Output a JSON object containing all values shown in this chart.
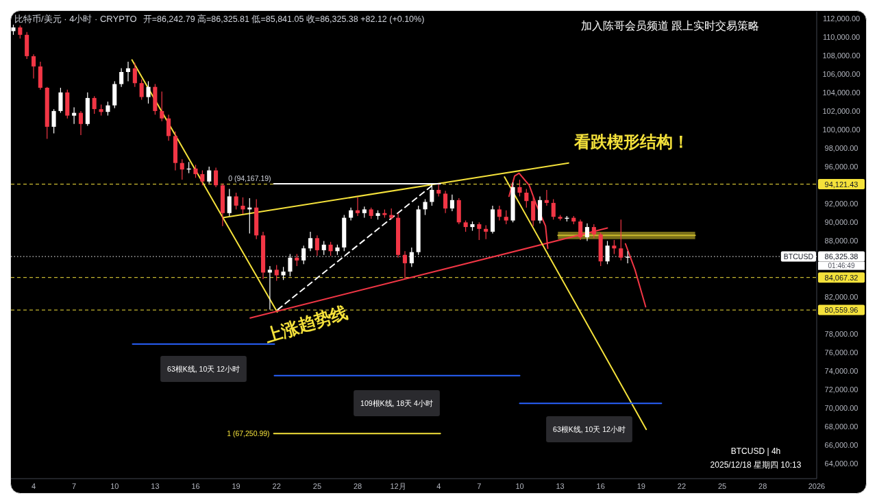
{
  "chart_data": {
    "type": "candlestick",
    "title": "比特币/美元 · 4小时 · CRYPTO",
    "subtitle": "开=86,242.79 高=86,325.81 低=85,841.05 收=86,325.38 +82.12 (+0.10%)",
    "x": [
      "2025-11-02T12:00",
      "2025-11-03T00:00",
      "2025-11-03T12:00",
      "2025-11-04T00:00",
      "2025-11-04T12:00",
      "2025-11-05T00:00",
      "2025-11-05T12:00",
      "2025-11-06T00:00",
      "2025-11-06T12:00",
      "2025-11-07T00:00",
      "2025-11-07T12:00",
      "2025-11-08T00:00",
      "2025-11-08T12:00",
      "2025-11-09T00:00",
      "2025-11-09T12:00",
      "2025-11-10T00:00",
      "2025-11-10T12:00",
      "2025-11-11T00:00",
      "2025-11-11T12:00",
      "2025-11-12T00:00",
      "2025-11-12T12:00",
      "2025-11-13T00:00",
      "2025-11-13T12:00",
      "2025-11-14T00:00",
      "2025-11-14T12:00",
      "2025-11-15T00:00",
      "2025-11-15T12:00",
      "2025-11-16T00:00",
      "2025-11-16T12:00",
      "2025-11-17T00:00",
      "2025-11-17T12:00",
      "2025-11-18T00:00",
      "2025-11-18T12:00",
      "2025-11-19T00:00",
      "2025-11-19T12:00",
      "2025-11-20T00:00",
      "2025-11-20T12:00",
      "2025-11-21T00:00",
      "2025-11-21T12:00",
      "2025-11-22T00:00",
      "2025-11-22T12:00",
      "2025-11-23T00:00",
      "2025-11-23T12:00",
      "2025-11-24T00:00",
      "2025-11-24T12:00",
      "2025-11-25T00:00",
      "2025-11-25T12:00",
      "2025-11-26T00:00",
      "2025-11-26T12:00",
      "2025-11-27T00:00",
      "2025-11-27T12:00",
      "2025-11-28T00:00",
      "2025-11-28T12:00",
      "2025-11-29T00:00",
      "2025-11-29T12:00",
      "2025-11-30T00:00",
      "2025-11-30T12:00",
      "2025-12-01T00:00",
      "2025-12-01T12:00",
      "2025-12-02T00:00",
      "2025-12-02T12:00",
      "2025-12-03T00:00",
      "2025-12-03T12:00",
      "2025-12-04T00:00",
      "2025-12-04T12:00",
      "2025-12-05T00:00",
      "2025-12-05T12:00",
      "2025-12-06T00:00",
      "2025-12-06T12:00",
      "2025-12-07T00:00",
      "2025-12-07T12:00",
      "2025-12-08T00:00",
      "2025-12-08T12:00",
      "2025-12-09T00:00",
      "2025-12-09T12:00",
      "2025-12-10T00:00",
      "2025-12-10T12:00",
      "2025-12-11T00:00",
      "2025-12-11T12:00",
      "2025-12-12T00:00",
      "2025-12-12T12:00",
      "2025-12-13T00:00",
      "2025-12-13T12:00",
      "2025-12-14T00:00",
      "2025-12-14T12:00",
      "2025-12-15T00:00",
      "2025-12-15T12:00",
      "2025-12-16T00:00",
      "2025-12-16T12:00",
      "2025-12-17T00:00",
      "2025-12-17T12:00",
      "2025-12-18T00:00"
    ],
    "ohlc": [
      [
        110600,
        111300,
        110200,
        111000
      ],
      [
        111000,
        111200,
        109800,
        110200
      ],
      [
        110200,
        110500,
        107600,
        107900
      ],
      [
        107900,
        108100,
        105500,
        106800
      ],
      [
        106800,
        107300,
        104300,
        104500
      ],
      [
        104500,
        104600,
        99000,
        100300
      ],
      [
        100300,
        102200,
        99600,
        102000
      ],
      [
        102000,
        104500,
        101800,
        104000
      ],
      [
        104000,
        104300,
        101200,
        101500
      ],
      [
        101500,
        102400,
        100600,
        101800
      ],
      [
        101800,
        102000,
        99400,
        100600
      ],
      [
        100600,
        104000,
        100400,
        103400
      ],
      [
        103400,
        103600,
        101700,
        102200
      ],
      [
        102200,
        102700,
        101500,
        101900
      ],
      [
        101900,
        103000,
        101500,
        102600
      ],
      [
        102600,
        105200,
        102300,
        104900
      ],
      [
        104900,
        106600,
        104600,
        106200
      ],
      [
        106200,
        107300,
        105200,
        106600
      ],
      [
        106600,
        107200,
        104600,
        105000
      ],
      [
        105000,
        105400,
        103200,
        103500
      ],
      [
        103500,
        105200,
        102800,
        104600
      ],
      [
        104600,
        104900,
        101600,
        102000
      ],
      [
        102000,
        104100,
        100900,
        101200
      ],
      [
        101200,
        101600,
        98800,
        99300
      ],
      [
        99300,
        99800,
        95600,
        96400
      ],
      [
        96400,
        96800,
        94600,
        95700
      ],
      [
        95700,
        96500,
        95300,
        95800
      ],
      [
        95800,
        96200,
        94800,
        95200
      ],
      [
        95200,
        95600,
        94000,
        94400
      ],
      [
        94400,
        96000,
        94200,
        95600
      ],
      [
        95600,
        95900,
        93800,
        94000
      ],
      [
        94000,
        94200,
        89600,
        91000
      ],
      [
        91000,
        93600,
        90700,
        92800
      ],
      [
        92800,
        93200,
        91400,
        91800
      ],
      [
        91800,
        92700,
        90900,
        91400
      ],
      [
        91400,
        92600,
        88800,
        91600
      ],
      [
        91600,
        92500,
        88200,
        88600
      ],
      [
        88600,
        89000,
        83900,
        84600
      ],
      [
        84600,
        85300,
        80600,
        84900
      ],
      [
        84900,
        85400,
        83700,
        84300
      ],
      [
        84300,
        85200,
        83800,
        84700
      ],
      [
        84700,
        86600,
        84200,
        86200
      ],
      [
        86200,
        86600,
        85300,
        85900
      ],
      [
        85900,
        87500,
        85500,
        87200
      ],
      [
        87200,
        89000,
        86900,
        88300
      ],
      [
        88300,
        88600,
        86400,
        87000
      ],
      [
        87000,
        88000,
        86500,
        87600
      ],
      [
        87600,
        87900,
        86400,
        86900
      ],
      [
        86900,
        87600,
        86500,
        87300
      ],
      [
        87300,
        90800,
        86900,
        90500
      ],
      [
        90500,
        91600,
        90200,
        91300
      ],
      [
        91300,
        92700,
        90700,
        91000
      ],
      [
        91000,
        91700,
        90500,
        91400
      ],
      [
        91400,
        91600,
        90400,
        90700
      ],
      [
        90700,
        91300,
        90300,
        91000
      ],
      [
        91000,
        91400,
        90500,
        90800
      ],
      [
        90800,
        91500,
        90300,
        90500
      ],
      [
        90500,
        91000,
        86200,
        86500
      ],
      [
        86500,
        86900,
        83900,
        85600
      ],
      [
        85600,
        87300,
        85200,
        86800
      ],
      [
        86800,
        91800,
        86500,
        91400
      ],
      [
        91400,
        92500,
        90800,
        92200
      ],
      [
        92200,
        94200,
        91800,
        93500
      ],
      [
        93500,
        94100,
        92800,
        93100
      ],
      [
        93100,
        93400,
        91000,
        91500
      ],
      [
        91500,
        93000,
        91200,
        92400
      ],
      [
        92400,
        92600,
        89800,
        90000
      ],
      [
        90000,
        90200,
        89000,
        89500
      ],
      [
        89500,
        90100,
        89100,
        89800
      ],
      [
        89800,
        90000,
        88100,
        89300
      ],
      [
        89300,
        89700,
        88200,
        89000
      ],
      [
        89000,
        91800,
        88800,
        91400
      ],
      [
        91400,
        91800,
        90200,
        90600
      ],
      [
        90600,
        91300,
        89800,
        90200
      ],
      [
        90200,
        94300,
        90000,
        93800
      ],
      [
        93800,
        94600,
        92800,
        93200
      ],
      [
        93200,
        93600,
        91600,
        92300
      ],
      [
        92300,
        92700,
        89600,
        90200
      ],
      [
        90200,
        92800,
        89900,
        92400
      ],
      [
        92400,
        93500,
        91800,
        92100
      ],
      [
        92100,
        92500,
        90300,
        90600
      ],
      [
        90600,
        90800,
        90200,
        90400
      ],
      [
        90400,
        90700,
        90100,
        90500
      ],
      [
        90500,
        90700,
        89800,
        90100
      ],
      [
        90100,
        90300,
        88100,
        88400
      ],
      [
        88400,
        89900,
        88000,
        89500
      ],
      [
        89500,
        89800,
        88300,
        88700
      ],
      [
        88700,
        88900,
        85300,
        85800
      ],
      [
        85800,
        88000,
        85500,
        87500
      ],
      [
        87500,
        88100,
        86600,
        87200
      ],
      [
        87200,
        90300,
        85900,
        86200
      ],
      [
        86200,
        86900,
        85600,
        86300
      ]
    ],
    "colors": [
      "#ffffff",
      "#f23645",
      "#f23645",
      "#f23645",
      "#f23645",
      "#f23645",
      "#ffffff",
      "#ffffff",
      "#f23645",
      "#ffffff",
      "#f23645",
      "#ffffff",
      "#f23645",
      "#f23645",
      "#ffffff",
      "#ffffff",
      "#ffffff",
      "#ffffff",
      "#f23645",
      "#f23645",
      "#ffffff",
      "#f23645",
      "#f23645",
      "#f23645",
      "#f23645",
      "#f23645",
      "#ffffff",
      "#f23645",
      "#f23645",
      "#ffffff",
      "#f23645",
      "#f23645",
      "#ffffff",
      "#f23645",
      "#f23645",
      "#ffffff",
      "#f23645",
      "#f23645",
      "#ffffff",
      "#f23645",
      "#ffffff",
      "#ffffff",
      "#f23645",
      "#ffffff",
      "#ffffff",
      "#f23645",
      "#ffffff",
      "#f23645",
      "#ffffff",
      "#ffffff",
      "#ffffff",
      "#f23645",
      "#ffffff",
      "#f23645",
      "#ffffff",
      "#f23645",
      "#f23645",
      "#f23645",
      "#f23645",
      "#ffffff",
      "#ffffff",
      "#ffffff",
      "#ffffff",
      "#f23645",
      "#f23645",
      "#ffffff",
      "#f23645",
      "#f23645",
      "#ffffff",
      "#f23645",
      "#f23645",
      "#ffffff",
      "#f23645",
      "#f23645",
      "#ffffff",
      "#f23645",
      "#f23645",
      "#f23645",
      "#ffffff",
      "#f23645",
      "#f23645",
      "#f23645",
      "#ffffff",
      "#f23645",
      "#f23645",
      "#ffffff",
      "#f23645",
      "#f23645",
      "#ffffff",
      "#f23645",
      "#f23645",
      "#ffffff"
    ],
    "xlim": [
      "2025-11-02T09:00",
      "2026-01-01T00:00"
    ],
    "xticks": [
      {
        "value": "2025-11-04",
        "label": "4"
      },
      {
        "value": "2025-11-07",
        "label": "7"
      },
      {
        "value": "2025-11-10",
        "label": "10"
      },
      {
        "value": "2025-11-13",
        "label": "13"
      },
      {
        "value": "2025-11-16",
        "label": "16"
      },
      {
        "value": "2025-11-19",
        "label": "19"
      },
      {
        "value": "2025-11-22",
        "label": "22"
      },
      {
        "value": "2025-11-25",
        "label": "25"
      },
      {
        "value": "2025-11-28",
        "label": "28"
      },
      {
        "value": "2025-12-01",
        "label": "12月"
      },
      {
        "value": "2025-12-04",
        "label": "4"
      },
      {
        "value": "2025-12-07",
        "label": "7"
      },
      {
        "value": "2025-12-10",
        "label": "10"
      },
      {
        "value": "2025-12-13",
        "label": "13"
      },
      {
        "value": "2025-12-16",
        "label": "16"
      },
      {
        "value": "2025-12-19",
        "label": "19"
      },
      {
        "value": "2025-12-22",
        "label": "22"
      },
      {
        "value": "2025-12-25",
        "label": "25"
      },
      {
        "value": "2025-12-28",
        "label": "28"
      },
      {
        "value": "2026-01-01",
        "label": "2026"
      }
    ],
    "ylim": [
      62400,
      112700
    ],
    "yticks": [
      {
        "value": 64000,
        "label": "64,000.00"
      },
      {
        "value": 66000,
        "label": "66,000.00"
      },
      {
        "value": 68000,
        "label": "68,000.00"
      },
      {
        "value": 70000,
        "label": "70,000.00"
      },
      {
        "value": 72000,
        "label": "72,000.00"
      },
      {
        "value": 74000,
        "label": "74,000.00"
      },
      {
        "value": 76000,
        "label": "76,000.00"
      },
      {
        "value": 78000,
        "label": "78,000.00"
      },
      {
        "value": 82000,
        "label": "82,000.00"
      },
      {
        "value": 88000,
        "label": "88,000.00"
      },
      {
        "value": 90000,
        "label": "90,000.00"
      },
      {
        "value": 92000,
        "label": "92,000.00"
      },
      {
        "value": 96000,
        "label": "96,000.00"
      },
      {
        "value": 98000,
        "label": "98,000.00"
      },
      {
        "value": 100000,
        "label": "100,000.00"
      },
      {
        "value": 102000,
        "label": "102,000.00"
      },
      {
        "value": 104000,
        "label": "104,000.00"
      },
      {
        "value": 106000,
        "label": "106,000.00"
      },
      {
        "value": 108000,
        "label": "108,000.00"
      },
      {
        "value": 110000,
        "label": "110,000.00"
      },
      {
        "value": 112000,
        "label": "112,000.00"
      }
    ],
    "series": [
      {
        "type": "line",
        "color": "#c9b92c",
        "x": [
          "2025-12-12T20:00",
          "2025-12-23T00:00"
        ],
        "values": [
          88600,
          88600
        ],
        "lower": [
          88200,
          88200
        ],
        "upper": [
          89000,
          89000
        ]
      },
      {
        "type": "line",
        "color": "#f5e23b",
        "x": [
          "2025-11-11T07:00",
          "2025-11-22T01:00"
        ],
        "values": [
          107500,
          80350
        ]
      },
      {
        "type": "line",
        "color": "#f5e23b",
        "x": [
          "2025-11-18T00:00",
          "2025-12-13T15:00"
        ],
        "values": [
          90500,
          96400
        ]
      },
      {
        "type": "line",
        "color": "#f23645",
        "x": [
          "2025-11-20T01:00",
          "2025-12-16T12:00"
        ],
        "values": [
          79700,
          89400
        ]
      },
      {
        "type": "line",
        "color": "#f5e23b",
        "x": [
          "2025-12-08T21:00",
          "2025-12-19T09:00"
        ],
        "values": [
          94900,
          67700
        ]
      },
      {
        "type": "line",
        "color": "#f23645",
        "x": [
          "2025-12-09T05:00",
          "2025-12-09T15:00",
          "2025-12-09T23:00",
          "2025-12-10T17:00",
          "2025-12-11T05:00",
          "2025-12-11T22:00",
          "2025-12-12T02:00"
        ],
        "values": [
          92800,
          95000,
          95300,
          94000,
          92000,
          89600,
          87200
        ]
      },
      {
        "type": "line",
        "color": "#f23645",
        "x": [
          "2025-12-17T20:00",
          "2025-12-18T13:00",
          "2025-12-19T08:00"
        ],
        "values": [
          87700,
          84900,
          80900
        ]
      },
      {
        "type": "line",
        "color": "#ffffff",
        "x": [
          "2025-11-21T19:00",
          "2025-12-04T03:00"
        ],
        "values": [
          94167.19,
          94167.19
        ]
      },
      {
        "type": "line",
        "color": "#f5e23b",
        "x": [
          "2025-11-21T19:00",
          "2025-12-04T03:00"
        ],
        "values": [
          67250.99,
          67250.99
        ]
      },
      {
        "type": "line",
        "color": "#ffffff",
        "line_style": "dashed",
        "x": [
          "2025-11-22T02:00",
          "2025-12-03T15:00"
        ],
        "values": [
          80600,
          94100
        ]
      },
      {
        "type": "line",
        "color": "#2962ff",
        "x": [
          "2025-11-11T08:00",
          "2025-11-21T20:00"
        ],
        "values": [
          76900,
          76900
        ]
      },
      {
        "type": "line",
        "color": "#2962ff",
        "x": [
          "2025-11-21T20:00",
          "2025-12-10T00:00"
        ],
        "values": [
          73500,
          73500
        ]
      },
      {
        "type": "line",
        "color": "#2962ff",
        "x": [
          "2025-12-10T00:00",
          "2025-12-20T12:00"
        ],
        "values": [
          70500,
          70500
        ]
      }
    ],
    "ref_lines": [
      {
        "axis": "y",
        "value": 94121.43,
        "label": "94,121.43",
        "color": "#f5e23b",
        "line_style": "dashed"
      },
      {
        "axis": "y",
        "value": 86325.38,
        "label": "86,325.38",
        "color": "#ffffff",
        "line_style": "dotted"
      },
      {
        "axis": "y",
        "value": 84067.32,
        "label": "84,067.32",
        "color": "#f5e23b",
        "line_style": "dashed"
      },
      {
        "axis": "y",
        "value": 80559.96,
        "label": "80,559.96",
        "color": "#f5e23b",
        "line_style": "dashed"
      }
    ],
    "annotations": [
      "加入陈哥会员频道 跟上实时交易策略",
      "看跌楔形结构！",
      "上涨趋势线",
      {
        "text": "0 (94,167.19)",
        "x": "2025-11-21T19:00",
        "y": 94167.19
      },
      {
        "text": "1 (67,250.99)",
        "x": "2025-11-21T19:00",
        "y": 67250.99
      },
      "63根K线, 10天 12小时",
      "109根K线, 18天 4小时",
      "63根K线, 10天 12小时",
      "BTCUSD | 4h",
      "2025/12/18 星期四 10:13",
      {
        "text": "BTCUSD",
        "y": 86325.38
      },
      "01:46:49"
    ]
  }
}
